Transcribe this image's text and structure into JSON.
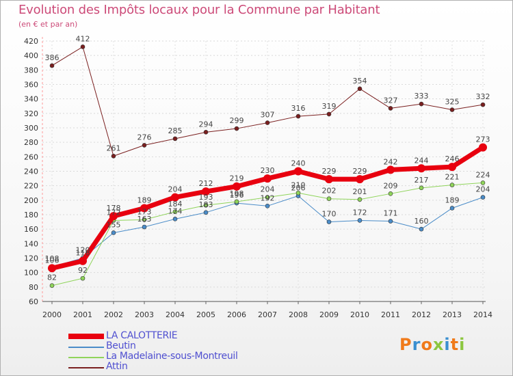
{
  "chart_data": {
    "type": "line",
    "title": "Evolution des Impôts locaux pour la Commune par Habitant",
    "subtitle": "(en € et par an)",
    "xlabel": "",
    "ylabel": "",
    "ylim": [
      60,
      420
    ],
    "yticks": [
      "60",
      "80",
      "100",
      "120",
      "140",
      "160",
      "180",
      "200",
      "220",
      "240",
      "260",
      "280",
      "300",
      "320",
      "340",
      "360",
      "380",
      "400",
      "420"
    ],
    "x": [
      "2000",
      "2001",
      "2002",
      "2003",
      "2004",
      "2005",
      "2006",
      "2007",
      "2008",
      "2009",
      "2010",
      "2011",
      "2012",
      "2013",
      "2014"
    ],
    "series": [
      {
        "name": "Attin",
        "color": "#7a1f1f",
        "values": [
          386,
          412,
          261,
          276,
          285,
          294,
          299,
          307,
          316,
          319,
          354,
          327,
          333,
          325,
          332
        ]
      },
      {
        "name": "Beutin",
        "color": "#4a8cc8",
        "values": [
          108,
          120,
          155,
          163,
          174,
          183,
          196,
          192,
          206,
          170,
          172,
          171,
          160,
          189,
          204
        ]
      },
      {
        "name": "La Madelaine-sous-Montreuil",
        "color": "#8fd45a",
        "values": [
          82,
          92,
          172,
          173,
          184,
          193,
          198,
          204,
          210,
          202,
          201,
          209,
          217,
          221,
          224
        ]
      },
      {
        "name": "LA CALOTTERIE",
        "color": "#e8000f",
        "values": [
          106,
          116,
          178,
          189,
          204,
          212,
          219,
          230,
          240,
          229,
          229,
          242,
          244,
          246,
          273
        ]
      }
    ]
  },
  "legend": [
    {
      "label": "LA CALOTTERIE",
      "color": "#e8000f",
      "text_color": "#4f4fd0"
    },
    {
      "label": "Beutin",
      "color": "#4a8cc8",
      "text_color": "#4f4fd0"
    },
    {
      "label": "La Madelaine-sous-Montreuil",
      "color": "#8fd45a",
      "text_color": "#4f4fd0"
    },
    {
      "label": "Attin",
      "color": "#7a1f1f",
      "text_color": "#4f4fd0"
    }
  ],
  "logo": {
    "letters": [
      "P",
      "r",
      "o",
      "x",
      "i",
      "t",
      "i"
    ],
    "colors": [
      "#f07a1a",
      "#3a8fd0",
      "#f07a1a",
      "#8cc63f",
      "#3a8fd0",
      "#f07a1a",
      "#8cc63f"
    ]
  }
}
